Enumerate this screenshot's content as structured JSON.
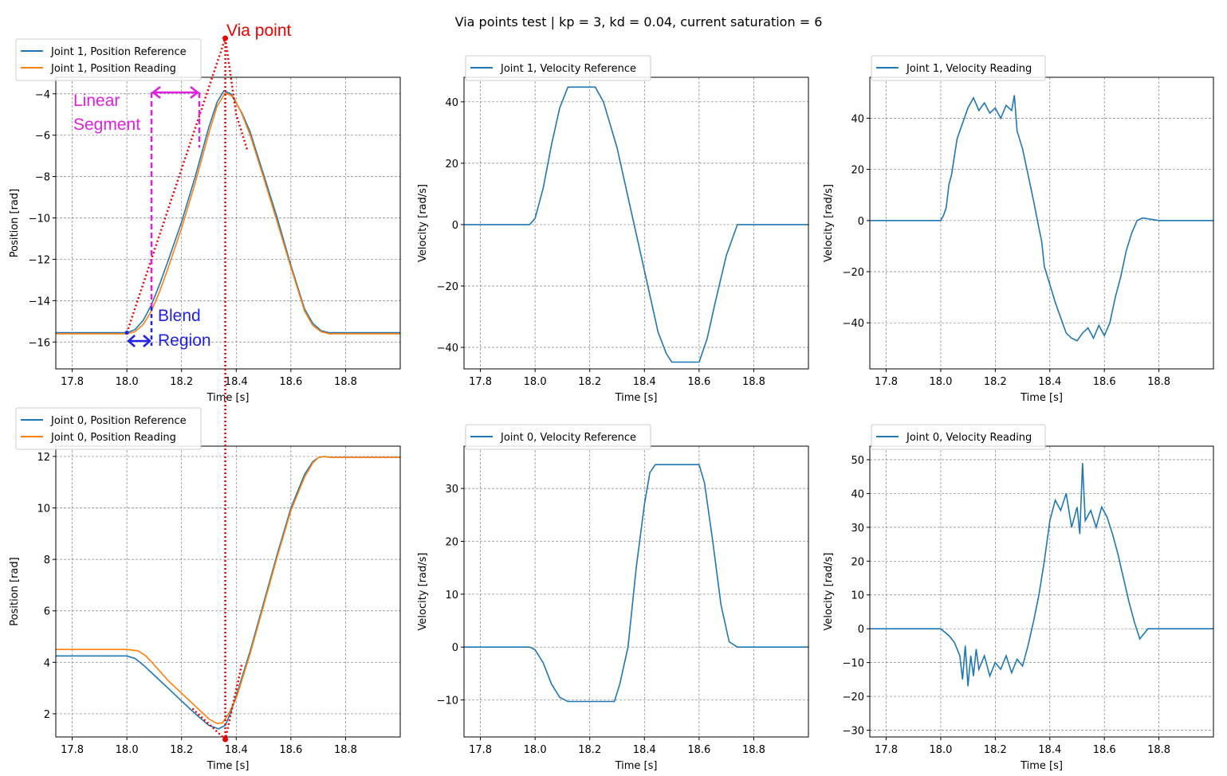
{
  "figure_title": "Via points test | kp = 3, kd = 0.04, current saturation = 6",
  "colors": {
    "reference": "#1f77b4",
    "reading": "#ff7f0e",
    "via": "#ee0000",
    "linear": "#e020e0",
    "blend": "#2020e8",
    "grid": "#808080"
  },
  "annotations": {
    "via_point": "Via point",
    "linear_segment": [
      "Linear",
      "Segment"
    ],
    "blend_region": [
      "Blend",
      "Region"
    ]
  },
  "chart_data": [
    {
      "type": "line",
      "panel": "top-left",
      "xlabel": "Time [s]",
      "ylabel": "Position [rad]",
      "xlim": [
        17.74,
        19.0
      ],
      "ylim": [
        -17.3,
        -3.2
      ],
      "xticks": [
        17.8,
        18.0,
        18.2,
        18.4,
        18.6,
        18.8
      ],
      "yticks": [
        -16,
        -14,
        -12,
        -10,
        -8,
        -6,
        -4
      ],
      "grid": true,
      "legend": "top-left-outside",
      "series": [
        {
          "name": "Joint 1, Position Reference",
          "color": "#1f77b4",
          "x": [
            17.74,
            18.0,
            18.03,
            18.06,
            18.09,
            18.12,
            18.15,
            18.2,
            18.25,
            18.3,
            18.33,
            18.355,
            18.38,
            18.42,
            18.45,
            18.5,
            18.55,
            18.6,
            18.65,
            18.68,
            18.71,
            18.74,
            18.8,
            19.0
          ],
          "y": [
            -15.55,
            -15.55,
            -15.4,
            -14.95,
            -14.2,
            -13.2,
            -12.1,
            -10.2,
            -8.0,
            -5.6,
            -4.4,
            -3.85,
            -4.0,
            -4.9,
            -5.8,
            -7.9,
            -10.0,
            -12.3,
            -14.4,
            -15.1,
            -15.45,
            -15.55,
            -15.55,
            -15.55
          ]
        },
        {
          "name": "Joint 1, Position Reading",
          "color": "#ff7f0e",
          "x": [
            17.74,
            18.0,
            18.03,
            18.06,
            18.09,
            18.12,
            18.15,
            18.2,
            18.25,
            18.3,
            18.33,
            18.36,
            18.39,
            18.42,
            18.45,
            18.5,
            18.55,
            18.6,
            18.65,
            18.68,
            18.71,
            18.74,
            18.8,
            19.0
          ],
          "y": [
            -15.6,
            -15.6,
            -15.5,
            -15.15,
            -14.5,
            -13.55,
            -12.45,
            -10.5,
            -8.3,
            -5.9,
            -4.6,
            -3.95,
            -4.15,
            -4.95,
            -5.95,
            -8.05,
            -10.2,
            -12.4,
            -14.5,
            -15.2,
            -15.5,
            -15.6,
            -15.6,
            -15.6
          ]
        }
      ]
    },
    {
      "type": "line",
      "panel": "top-middle",
      "xlabel": "Time [s]",
      "ylabel": "Velocity [rad/s]",
      "xlim": [
        17.74,
        19.0
      ],
      "ylim": [
        -47,
        48
      ],
      "xticks": [
        17.8,
        18.0,
        18.2,
        18.4,
        18.6,
        18.8
      ],
      "yticks": [
        -40,
        -20,
        0,
        20,
        40
      ],
      "grid": true,
      "legend": "top-left-outside",
      "series": [
        {
          "name": "Joint 1, Velocity Reference",
          "color": "#1f77b4",
          "x": [
            17.74,
            17.98,
            18.0,
            18.03,
            18.06,
            18.09,
            18.12,
            18.22,
            18.25,
            18.3,
            18.35,
            18.4,
            18.45,
            18.48,
            18.5,
            18.6,
            18.63,
            18.66,
            18.7,
            18.74,
            19.0
          ],
          "y": [
            0,
            0,
            2,
            12,
            26,
            38,
            44.8,
            44.8,
            40,
            25,
            5,
            -15,
            -35,
            -42,
            -44.8,
            -44.8,
            -37,
            -25,
            -10,
            0,
            0
          ]
        }
      ]
    },
    {
      "type": "line",
      "panel": "top-right",
      "xlabel": "Time [s]",
      "ylabel": "Velocity [rad/s]",
      "xlim": [
        17.74,
        19.0
      ],
      "ylim": [
        -58,
        56
      ],
      "xticks": [
        17.8,
        18.0,
        18.2,
        18.4,
        18.6,
        18.8
      ],
      "yticks": [
        -40,
        -20,
        0,
        20,
        40
      ],
      "grid": true,
      "legend": "top-left-outside",
      "series": [
        {
          "name": "Joint 1, Velocity Reading",
          "color": "#1f77b4",
          "x": [
            17.74,
            18.0,
            18.01,
            18.02,
            18.03,
            18.04,
            18.05,
            18.06,
            18.08,
            18.1,
            18.12,
            18.14,
            18.16,
            18.18,
            18.2,
            18.22,
            18.24,
            18.26,
            18.27,
            18.28,
            18.3,
            18.32,
            18.34,
            18.36,
            18.37,
            18.38,
            18.4,
            18.42,
            18.44,
            18.46,
            18.48,
            18.5,
            18.52,
            18.54,
            18.56,
            18.58,
            18.6,
            18.62,
            18.64,
            18.66,
            18.68,
            18.7,
            18.72,
            18.74,
            18.8,
            19.0
          ],
          "y": [
            0,
            0,
            2,
            5,
            14,
            18,
            25,
            32,
            38,
            44,
            48,
            43,
            46,
            42,
            44,
            40,
            45,
            43,
            49,
            35,
            28,
            18,
            8,
            -3,
            -8,
            -18,
            -25,
            -32,
            -38,
            -44,
            -46,
            -47,
            -44,
            -42,
            -46,
            -41,
            -45,
            -40,
            -30,
            -22,
            -12,
            -5,
            0,
            1,
            0,
            0
          ]
        }
      ]
    },
    {
      "type": "line",
      "panel": "bottom-left",
      "xlabel": "Time [s]",
      "ylabel": "Position [rad]",
      "xlim": [
        17.74,
        19.0
      ],
      "ylim": [
        1.1,
        12.4
      ],
      "xticks": [
        17.8,
        18.0,
        18.2,
        18.4,
        18.6,
        18.8
      ],
      "yticks": [
        2,
        4,
        6,
        8,
        10,
        12
      ],
      "grid": true,
      "legend": "top-left-outside",
      "series": [
        {
          "name": "Joint 0, Position Reference",
          "color": "#1f77b4",
          "x": [
            17.74,
            18.0,
            18.03,
            18.06,
            18.1,
            18.15,
            18.2,
            18.25,
            18.3,
            18.335,
            18.36,
            18.38,
            18.4,
            18.45,
            18.5,
            18.55,
            18.6,
            18.65,
            18.68,
            18.7,
            18.72,
            18.74,
            19.0
          ],
          "y": [
            4.25,
            4.25,
            4.15,
            3.9,
            3.5,
            3.0,
            2.5,
            2.0,
            1.55,
            1.42,
            1.55,
            2.05,
            2.7,
            4.4,
            6.3,
            8.2,
            10.0,
            11.3,
            11.8,
            11.95,
            12.0,
            11.97,
            11.97
          ]
        },
        {
          "name": "Joint 0, Position Reading",
          "color": "#ff7f0e",
          "x": [
            17.74,
            18.0,
            18.04,
            18.07,
            18.1,
            18.15,
            18.2,
            18.25,
            18.3,
            18.33,
            18.35,
            18.37,
            18.4,
            18.45,
            18.5,
            18.55,
            18.6,
            18.65,
            18.68,
            18.7,
            18.72,
            18.74,
            19.0
          ],
          "y": [
            4.5,
            4.5,
            4.45,
            4.25,
            3.9,
            3.3,
            2.8,
            2.3,
            1.8,
            1.62,
            1.65,
            1.95,
            2.6,
            4.3,
            6.2,
            8.1,
            9.9,
            11.2,
            11.75,
            11.95,
            12.0,
            11.97,
            11.97
          ]
        }
      ]
    },
    {
      "type": "line",
      "panel": "bottom-middle",
      "xlabel": "Time [s]",
      "ylabel": "Velocity [rad/s]",
      "xlim": [
        17.74,
        19.0
      ],
      "ylim": [
        -17,
        38
      ],
      "xticks": [
        17.8,
        18.0,
        18.2,
        18.4,
        18.6,
        18.8
      ],
      "yticks": [
        -10,
        0,
        10,
        20,
        30
      ],
      "grid": true,
      "legend": "top-left-outside",
      "series": [
        {
          "name": "Joint 0, Velocity Reference",
          "color": "#1f77b4",
          "x": [
            17.74,
            17.98,
            18.0,
            18.03,
            18.06,
            18.09,
            18.12,
            18.29,
            18.31,
            18.34,
            18.37,
            18.4,
            18.42,
            18.44,
            18.6,
            18.62,
            18.65,
            18.68,
            18.71,
            18.74,
            19.0
          ],
          "y": [
            0,
            0,
            -0.5,
            -3,
            -7,
            -9.5,
            -10.3,
            -10.3,
            -7,
            0,
            15,
            27,
            33,
            34.5,
            34.5,
            31,
            20,
            8,
            1,
            0,
            0
          ]
        }
      ]
    },
    {
      "type": "line",
      "panel": "bottom-right",
      "xlabel": "Time [s]",
      "ylabel": "Velocity [rad/s]",
      "xlim": [
        17.74,
        19.0
      ],
      "ylim": [
        -32,
        54
      ],
      "xticks": [
        17.8,
        18.0,
        18.2,
        18.4,
        18.6,
        18.8
      ],
      "yticks": [
        -30,
        -20,
        -10,
        0,
        10,
        20,
        30,
        40,
        50
      ],
      "grid": true,
      "legend": "top-left-outside",
      "series": [
        {
          "name": "Joint 0, Velocity Reading",
          "color": "#1f77b4",
          "x": [
            17.74,
            18.0,
            18.03,
            18.05,
            18.07,
            18.08,
            18.09,
            18.1,
            18.11,
            18.12,
            18.13,
            18.14,
            18.16,
            18.18,
            18.2,
            18.22,
            18.24,
            18.26,
            18.28,
            18.3,
            18.32,
            18.34,
            18.36,
            18.38,
            18.4,
            18.42,
            18.44,
            18.46,
            18.48,
            18.5,
            18.51,
            18.52,
            18.53,
            18.55,
            18.57,
            18.59,
            18.61,
            18.63,
            18.65,
            18.67,
            18.69,
            18.71,
            18.73,
            18.76,
            18.8,
            19.0
          ],
          "y": [
            0,
            0,
            -2,
            -4,
            -8,
            -15,
            -5,
            -17,
            -8,
            -14,
            -6,
            -12,
            -8,
            -14,
            -10,
            -12,
            -8,
            -13,
            -9,
            -11,
            -5,
            2,
            10,
            20,
            32,
            38,
            35,
            40,
            30,
            36,
            28,
            49,
            32,
            35,
            30,
            36,
            33,
            28,
            22,
            15,
            8,
            2,
            -3,
            0,
            0,
            0
          ]
        }
      ]
    }
  ]
}
